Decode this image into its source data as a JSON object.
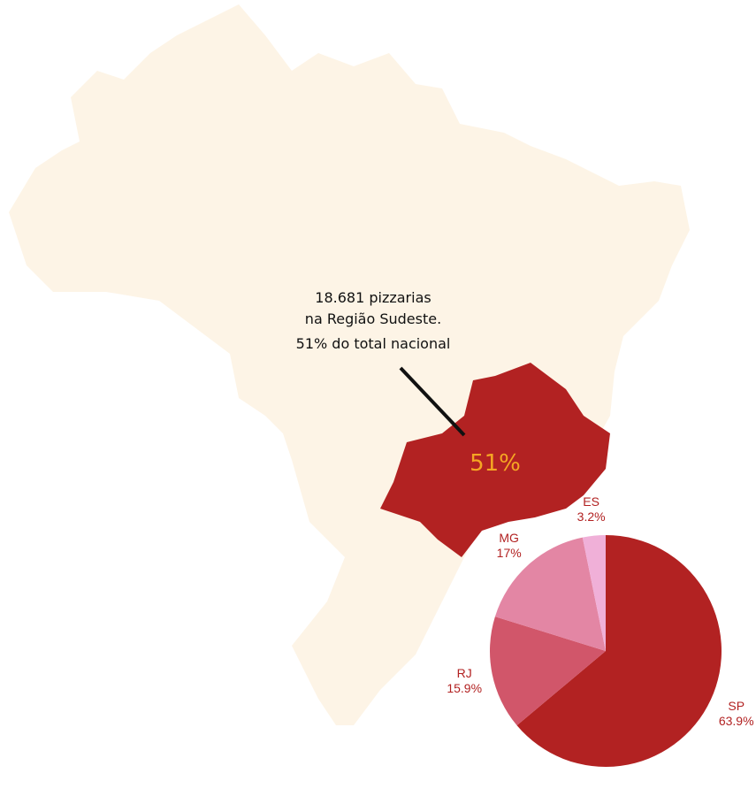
{
  "chart_data": {
    "type": "pie",
    "annotation": [
      "18.681 pizzarias",
      "na Região Sudeste.",
      "51% do total nacional"
    ],
    "map_label": "51%",
    "categories": [
      "SP",
      "RJ",
      "MG",
      "ES"
    ],
    "values": [
      63.9,
      15.9,
      17,
      3.2
    ],
    "value_labels": [
      "63.9%",
      "15.9%",
      "17%",
      "3.2%"
    ],
    "colors": [
      "#b22222",
      "#d1566a",
      "#e386a4",
      "#f0b0d8"
    ]
  }
}
